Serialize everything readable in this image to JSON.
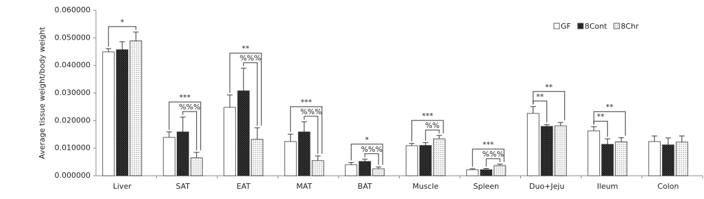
{
  "chart_data": {
    "type": "bar",
    "y_label": "Average tissue weight/body weight",
    "categories": [
      "Liver",
      "SAT",
      "EAT",
      "MAT",
      "BAT",
      "Muscle",
      "Spleen",
      "Duo+Jeju",
      "Ileum",
      "Colon"
    ],
    "series": [
      {
        "name": "GF",
        "color": "#ffffff",
        "pattern": "none",
        "values": [
          0.0449,
          0.0139,
          0.0248,
          0.0124,
          0.004,
          0.0109,
          0.0022,
          0.0226,
          0.0163,
          0.0124
        ],
        "errors": [
          0.0012,
          0.002,
          0.0045,
          0.0027,
          0.0008,
          0.0008,
          0.0003,
          0.0025,
          0.0015,
          0.002
        ]
      },
      {
        "name": "8Cont",
        "color": "#333333",
        "pattern": "crosshatch",
        "values": [
          0.0457,
          0.0159,
          0.0308,
          0.0159,
          0.0052,
          0.011,
          0.0022,
          0.0179,
          0.0114,
          0.0112
        ],
        "errors": [
          0.0029,
          0.0054,
          0.0082,
          0.0037,
          0.0008,
          0.001,
          0.0004,
          0.0006,
          0.002,
          0.0025
        ]
      },
      {
        "name": "8Chr",
        "color": "#555555",
        "pattern": "dots",
        "values": [
          0.0489,
          0.0065,
          0.0132,
          0.0055,
          0.0025,
          0.0134,
          0.0037,
          0.0181,
          0.0123,
          0.0122
        ],
        "errors": [
          0.0032,
          0.002,
          0.0042,
          0.0017,
          0.0007,
          0.0012,
          0.0005,
          0.0012,
          0.0015,
          0.0022
        ]
      }
    ],
    "ylim": [
      0,
      0.06
    ],
    "yticks": [
      {
        "value": 0,
        "label": "0.000000"
      },
      {
        "value": 0.01,
        "label": "0.010000"
      },
      {
        "value": 0.02,
        "label": "0.020000"
      },
      {
        "value": 0.03,
        "label": "0.030000"
      },
      {
        "value": 0.04,
        "label": "0.040000"
      },
      {
        "value": 0.05,
        "label": "0.050000"
      },
      {
        "value": 0.06,
        "label": "0.060000"
      }
    ],
    "legend": "top-right",
    "annotations": [
      {
        "category": 0,
        "pair": [
          0,
          2
        ],
        "text": "*"
      },
      {
        "category": 1,
        "pair": [
          1,
          2
        ],
        "text": "%%%"
      },
      {
        "category": 1,
        "pair": [
          0,
          2
        ],
        "text": "***"
      },
      {
        "category": 2,
        "pair": [
          1,
          2
        ],
        "text": "%%%"
      },
      {
        "category": 2,
        "pair": [
          0,
          2
        ],
        "text": "**"
      },
      {
        "category": 3,
        "pair": [
          1,
          2
        ],
        "text": "%%%"
      },
      {
        "category": 3,
        "pair": [
          0,
          2
        ],
        "text": "***"
      },
      {
        "category": 4,
        "pair": [
          1,
          2
        ],
        "text": "%%%"
      },
      {
        "category": 4,
        "pair": [
          0,
          2
        ],
        "text": "*"
      },
      {
        "category": 5,
        "pair": [
          1,
          2
        ],
        "text": "%%"
      },
      {
        "category": 5,
        "pair": [
          0,
          2
        ],
        "text": "***"
      },
      {
        "category": 6,
        "pair": [
          1,
          2
        ],
        "text": "%%%"
      },
      {
        "category": 6,
        "pair": [
          0,
          2
        ],
        "text": "***"
      },
      {
        "category": 7,
        "pair": [
          0,
          1
        ],
        "text": "**"
      },
      {
        "category": 7,
        "pair": [
          0,
          2
        ],
        "text": "**"
      },
      {
        "category": 8,
        "pair": [
          0,
          1
        ],
        "text": "**"
      },
      {
        "category": 8,
        "pair": [
          0,
          2
        ],
        "text": "**"
      }
    ]
  }
}
